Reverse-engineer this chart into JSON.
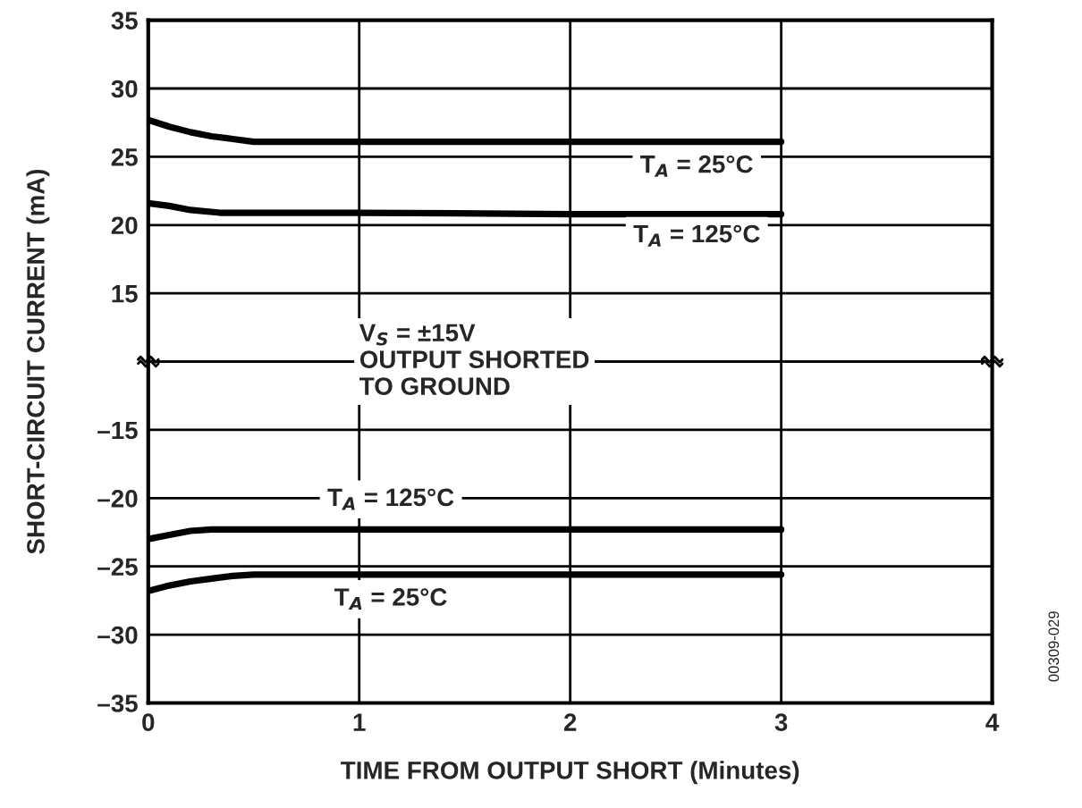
{
  "chart_data": [
    {
      "type": "line",
      "ylabel": "SHORT-CIRCUIT CURRENT (mA)",
      "xlim": [
        0,
        4
      ],
      "xticks": [
        0,
        1,
        2,
        3,
        4
      ],
      "ylim": [
        10,
        35
      ],
      "yticks": [
        15,
        20,
        25,
        30,
        35
      ],
      "grid": true,
      "tick_labels": "y",
      "legend": false,
      "series": [
        {
          "name": "T$_{A}$ = 25°C",
          "color": "#000000",
          "x": [
            0,
            0.1,
            0.2,
            0.3,
            0.4,
            0.5,
            1,
            2,
            3
          ],
          "values": [
            27.7,
            27.2,
            26.8,
            26.5,
            26.3,
            26.1,
            26.1,
            26.1,
            26.1
          ]
        },
        {
          "name": "T$_{A}$ = 125°C",
          "color": "#000000",
          "x": [
            0,
            0.1,
            0.2,
            0.34,
            1,
            2,
            3
          ],
          "values": [
            21.6,
            21.4,
            21.1,
            20.9,
            20.9,
            20.8,
            20.8
          ]
        }
      ]
    },
    {
      "type": "line",
      "xlabel": "TIME FROM OUTPUT SHORT (Minutes)",
      "xlim": [
        0,
        4
      ],
      "xticks": [
        0,
        1,
        2,
        3,
        4
      ],
      "ylim": [
        -35,
        -10
      ],
      "yticks": [
        {
          "value": -35,
          "label": "–35"
        },
        {
          "value": -30,
          "label": "–30"
        },
        {
          "value": -25,
          "label": "–25"
        },
        {
          "value": -20,
          "label": "–20"
        },
        {
          "value": -15,
          "label": "–15"
        }
      ],
      "grid": true,
      "legend": false,
      "annotations": [
        "V$_{S}$ = ±15V\nOUTPUT SHORTED\nTO GROUND",
        "00309-029"
      ],
      "series": [
        {
          "name": "T$_{A}$ = 125°C",
          "color": "#000000",
          "x": [
            0,
            0.1,
            0.2,
            0.3,
            1,
            2,
            3
          ],
          "values": [
            -23.0,
            -22.7,
            -22.4,
            -22.3,
            -22.3,
            -22.3,
            -22.3
          ]
        },
        {
          "name": "T$_{A}$ = 25°C",
          "color": "#000000",
          "x": [
            0,
            0.1,
            0.2,
            0.3,
            0.4,
            0.5,
            1,
            2,
            3
          ],
          "values": [
            -26.8,
            -26.4,
            -26.1,
            -25.9,
            -25.7,
            -25.6,
            -25.6,
            -25.6,
            -25.6
          ]
        }
      ]
    }
  ]
}
